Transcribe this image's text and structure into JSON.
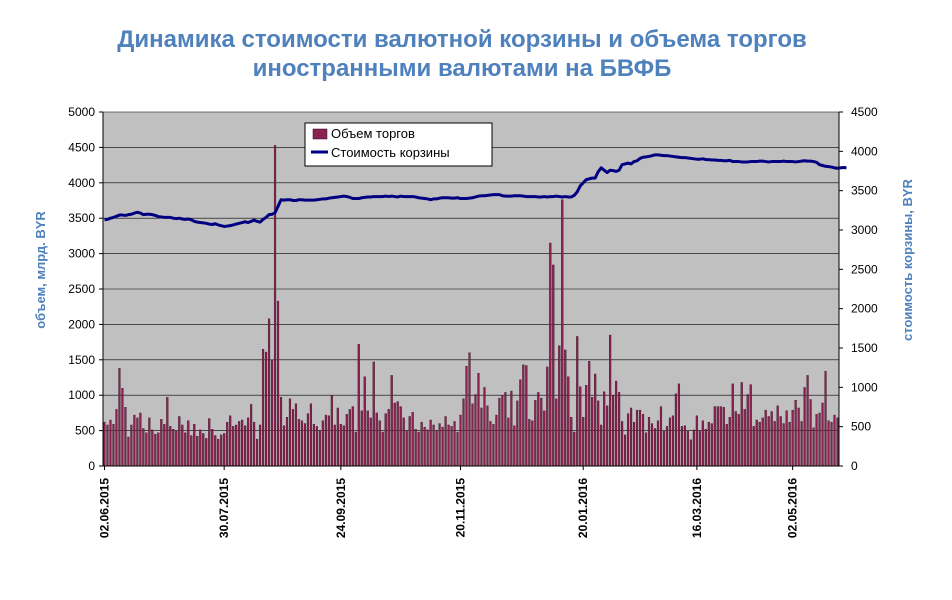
{
  "colors": {
    "title": "#4F81BD",
    "axis_title": "#4F81BD",
    "plot_bg": "#C0C0C0",
    "bar_fill": "#8B2252",
    "bar_stroke": "#2a0a18",
    "line": "#000080",
    "grid": "#000000"
  },
  "chart_data": {
    "type": "bar+line",
    "title_lines": [
      "Динамика стоимости валютной корзины и объема торгов",
      "иностранными валютами на БВФБ"
    ],
    "y_left": {
      "label": "объем, млрд. BYR",
      "min": 0,
      "max": 5000,
      "step": 500,
      "ticks": [
        "0",
        "500",
        "1000",
        "1500",
        "2000",
        "2500",
        "3000",
        "3500",
        "4000",
        "4500",
        "5000"
      ]
    },
    "y_right": {
      "label": "стоимость корзины, BYR",
      "min": 0,
      "max": 4500,
      "step": 500,
      "ticks": [
        "0",
        "500",
        "1000",
        "1500",
        "2000",
        "2500",
        "3000",
        "3500",
        "4000",
        "4500"
      ]
    },
    "x_tick_labels": [
      "02.06.2015",
      "30.07.2015",
      "24.09.2015",
      "20.11.2015",
      "20.01.2016",
      "16.03.2016",
      "02.05.2016"
    ],
    "x_tick_indices": [
      0,
      40,
      79,
      119,
      160,
      198,
      230
    ],
    "grid": "horizontal",
    "legend_position": "top-center",
    "series": [
      {
        "name": "Объем торгов",
        "type": "bar",
        "axis": "left",
        "values": [
          620,
          580,
          650,
          590,
          800,
          1380,
          1100,
          830,
          410,
          580,
          720,
          680,
          750,
          530,
          470,
          680,
          510,
          450,
          470,
          660,
          590,
          970,
          560,
          520,
          490,
          700,
          580,
          470,
          640,
          430,
          590,
          420,
          510,
          460,
          390,
          670,
          520,
          430,
          380,
          440,
          460,
          620,
          710,
          560,
          580,
          630,
          650,
          570,
          680,
          870,
          620,
          380,
          580,
          1650,
          1610,
          2080,
          1500,
          4530,
          2330,
          970,
          570,
          690,
          950,
          800,
          880,
          660,
          640,
          600,
          740,
          880,
          590,
          560,
          500,
          640,
          720,
          710,
          990,
          580,
          820,
          590,
          570,
          730,
          800,
          840,
          480,
          1720,
          780,
          1260,
          780,
          680,
          1470,
          750,
          640,
          480,
          740,
          800,
          1280,
          890,
          910,
          840,
          680,
          500,
          700,
          760,
          520,
          480,
          620,
          550,
          510,
          650,
          580,
          500,
          600,
          550,
          700,
          580,
          560,
          630,
          480,
          720,
          950,
          1410,
          1600,
          880,
          1010,
          1310,
          820,
          1110,
          850,
          630,
          590,
          720,
          960,
          990,
          1040,
          680,
          1060,
          570,
          920,
          1220,
          1430,
          1420,
          660,
          640,
          930,
          1040,
          960,
          780,
          1400,
          3150,
          2840,
          950,
          1700,
          3760,
          1640,
          1260,
          690,
          480,
          1830,
          1120,
          690,
          1140,
          1480,
          970,
          1300,
          920,
          580,
          1050,
          850,
          1850,
          1000,
          1200,
          1040,
          630,
          440,
          740,
          820,
          620,
          790,
          790,
          730,
          470,
          690,
          600,
          530,
          640,
          840,
          490,
          560,
          680,
          710,
          1020,
          1160,
          560,
          570,
          490,
          370,
          510,
          710,
          490,
          640,
          520,
          620,
          600,
          840,
          840,
          840,
          830,
          590,
          690,
          1160,
          770,
          730,
          1180,
          800,
          1010,
          1150,
          560,
          650,
          620,
          680,
          790,
          700,
          770,
          630,
          850,
          700,
          600,
          780,
          620,
          790,
          930,
          820,
          630,
          1110,
          1280,
          940,
          540,
          730,
          750,
          890,
          1340,
          640,
          620,
          720,
          680
        ]
      },
      {
        "name": "Стоимость корзины",
        "type": "line",
        "axis": "right",
        "values": [
          3130,
          3135,
          3150,
          3160,
          3175,
          3190,
          3190,
          3185,
          3195,
          3200,
          3215,
          3225,
          3215,
          3195,
          3200,
          3200,
          3195,
          3185,
          3170,
          3165,
          3160,
          3160,
          3160,
          3150,
          3145,
          3150,
          3140,
          3135,
          3140,
          3130,
          3110,
          3100,
          3095,
          3090,
          3085,
          3075,
          3070,
          3080,
          3065,
          3055,
          3045,
          3050,
          3055,
          3065,
          3075,
          3085,
          3095,
          3105,
          3095,
          3110,
          3125,
          3110,
          3100,
          3135,
          3160,
          3195,
          3200,
          3220,
          3300,
          3385,
          3380,
          3385,
          3385,
          3375,
          3375,
          3385,
          3385,
          3380,
          3380,
          3380,
          3380,
          3385,
          3390,
          3395,
          3395,
          3405,
          3410,
          3415,
          3420,
          3425,
          3430,
          3425,
          3415,
          3400,
          3400,
          3400,
          3410,
          3415,
          3420,
          3420,
          3425,
          3425,
          3425,
          3425,
          3430,
          3425,
          3430,
          3425,
          3420,
          3430,
          3425,
          3425,
          3425,
          3425,
          3420,
          3410,
          3405,
          3400,
          3395,
          3385,
          3395,
          3395,
          3405,
          3410,
          3410,
          3410,
          3405,
          3405,
          3410,
          3400,
          3400,
          3400,
          3405,
          3410,
          3420,
          3430,
          3435,
          3435,
          3440,
          3445,
          3450,
          3450,
          3450,
          3435,
          3430,
          3430,
          3430,
          3435,
          3435,
          3435,
          3430,
          3425,
          3425,
          3425,
          3425,
          3420,
          3420,
          3425,
          3420,
          3425,
          3425,
          3430,
          3425,
          3420,
          3425,
          3420,
          3420,
          3440,
          3485,
          3560,
          3600,
          3640,
          3650,
          3660,
          3660,
          3740,
          3790,
          3760,
          3730,
          3760,
          3755,
          3745,
          3760,
          3830,
          3840,
          3850,
          3840,
          3870,
          3880,
          3910,
          3925,
          3930,
          3935,
          3945,
          3955,
          3955,
          3950,
          3945,
          3945,
          3940,
          3935,
          3930,
          3925,
          3920,
          3920,
          3915,
          3910,
          3905,
          3900,
          3900,
          3905,
          3895,
          3895,
          3890,
          3890,
          3885,
          3885,
          3880,
          3880,
          3885,
          3870,
          3870,
          3870,
          3865,
          3865,
          3865,
          3870,
          3870,
          3870,
          3875,
          3875,
          3870,
          3865,
          3870,
          3870,
          3870,
          3870,
          3875,
          3870,
          3870,
          3870,
          3865,
          3870,
          3875,
          3880,
          3875,
          3875,
          3870,
          3860,
          3830,
          3820,
          3810,
          3805,
          3800,
          3790,
          3785,
          3790,
          3795,
          3790
        ]
      }
    ]
  }
}
